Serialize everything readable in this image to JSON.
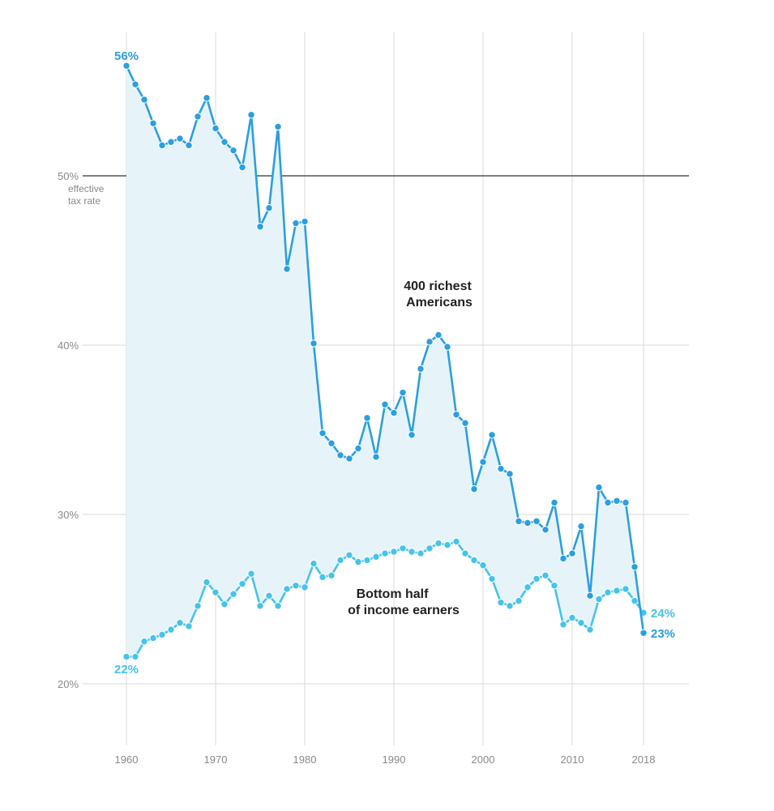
{
  "chart_data": {
    "type": "line",
    "x_ticks": [
      1960,
      1970,
      1980,
      1990,
      2000,
      2010,
      2018
    ],
    "y_ticks": [
      {
        "value": 20,
        "label": "20%"
      },
      {
        "value": 30,
        "label": "30%"
      },
      {
        "value": 40,
        "label": "40%"
      },
      {
        "value": 50,
        "label": "50%"
      }
    ],
    "reference_line": {
      "value": 50,
      "note_lines": [
        "effective",
        "tax rate"
      ]
    },
    "xlim": [
      1955,
      2020
    ],
    "ylim": [
      16.5,
      58.5
    ],
    "grid": true,
    "shaded_between_series": true,
    "series": [
      {
        "name": "400 richest Americans",
        "label_lines": [
          "400 richest",
          "Americans"
        ],
        "color": "#2b9fe0",
        "start_label": "56%",
        "end_label": "23%",
        "x": [
          1960,
          1961,
          1962,
          1963,
          1964,
          1965,
          1966,
          1967,
          1968,
          1969,
          1970,
          1971,
          1972,
          1973,
          1974,
          1975,
          1976,
          1977,
          1978,
          1979,
          1980,
          1981,
          1982,
          1983,
          1984,
          1985,
          1986,
          1987,
          1988,
          1989,
          1990,
          1991,
          1992,
          1993,
          1994,
          1995,
          1996,
          1997,
          1998,
          1999,
          2000,
          2001,
          2002,
          2003,
          2004,
          2005,
          2006,
          2007,
          2008,
          2009,
          2010,
          2011,
          2012,
          2013,
          2014,
          2015,
          2016,
          2017,
          2018
        ],
        "y": [
          56.5,
          55.4,
          54.5,
          53.1,
          51.8,
          52.0,
          52.2,
          51.8,
          53.5,
          54.6,
          52.8,
          52.0,
          51.5,
          50.5,
          53.6,
          47.0,
          48.1,
          52.9,
          44.5,
          47.2,
          47.3,
          40.1,
          34.8,
          34.2,
          33.5,
          33.3,
          33.9,
          35.7,
          33.4,
          36.5,
          36.0,
          37.2,
          34.7,
          38.6,
          40.2,
          40.6,
          39.9,
          35.9,
          35.4,
          31.5,
          33.1,
          34.7,
          32.7,
          32.4,
          29.6,
          29.5,
          29.6,
          29.1,
          30.7,
          27.4,
          27.7,
          29.3,
          25.2,
          31.6,
          30.7,
          30.8,
          30.7,
          26.9,
          23.0
        ]
      },
      {
        "name": "Bottom half of income earners",
        "label_lines": [
          "Bottom half",
          "of income earners"
        ],
        "color": "#47c3ea",
        "start_label": "22%",
        "end_label": "24%",
        "x": [
          1960,
          1961,
          1962,
          1963,
          1964,
          1965,
          1966,
          1967,
          1968,
          1969,
          1970,
          1971,
          1972,
          1973,
          1974,
          1975,
          1976,
          1977,
          1978,
          1979,
          1980,
          1981,
          1982,
          1983,
          1984,
          1985,
          1986,
          1987,
          1988,
          1989,
          1990,
          1991,
          1992,
          1993,
          1994,
          1995,
          1996,
          1997,
          1998,
          1999,
          2000,
          2001,
          2002,
          2003,
          2004,
          2005,
          2006,
          2007,
          2008,
          2009,
          2010,
          2011,
          2012,
          2013,
          2014,
          2015,
          2016,
          2017,
          2018
        ],
        "y": [
          21.6,
          21.6,
          22.5,
          22.7,
          22.9,
          23.2,
          23.6,
          23.4,
          24.6,
          26.0,
          25.4,
          24.7,
          25.3,
          25.9,
          26.5,
          24.6,
          25.2,
          24.6,
          25.6,
          25.8,
          25.7,
          27.1,
          26.3,
          26.4,
          27.3,
          27.6,
          27.2,
          27.3,
          27.5,
          27.7,
          27.8,
          28.0,
          27.8,
          27.7,
          28.0,
          28.3,
          28.2,
          28.4,
          27.7,
          27.3,
          27.0,
          26.2,
          24.8,
          24.6,
          24.9,
          25.7,
          26.2,
          26.4,
          25.8,
          23.5,
          23.9,
          23.6,
          23.2,
          25.0,
          25.4,
          25.5,
          25.6,
          24.9,
          24.2
        ]
      }
    ]
  }
}
